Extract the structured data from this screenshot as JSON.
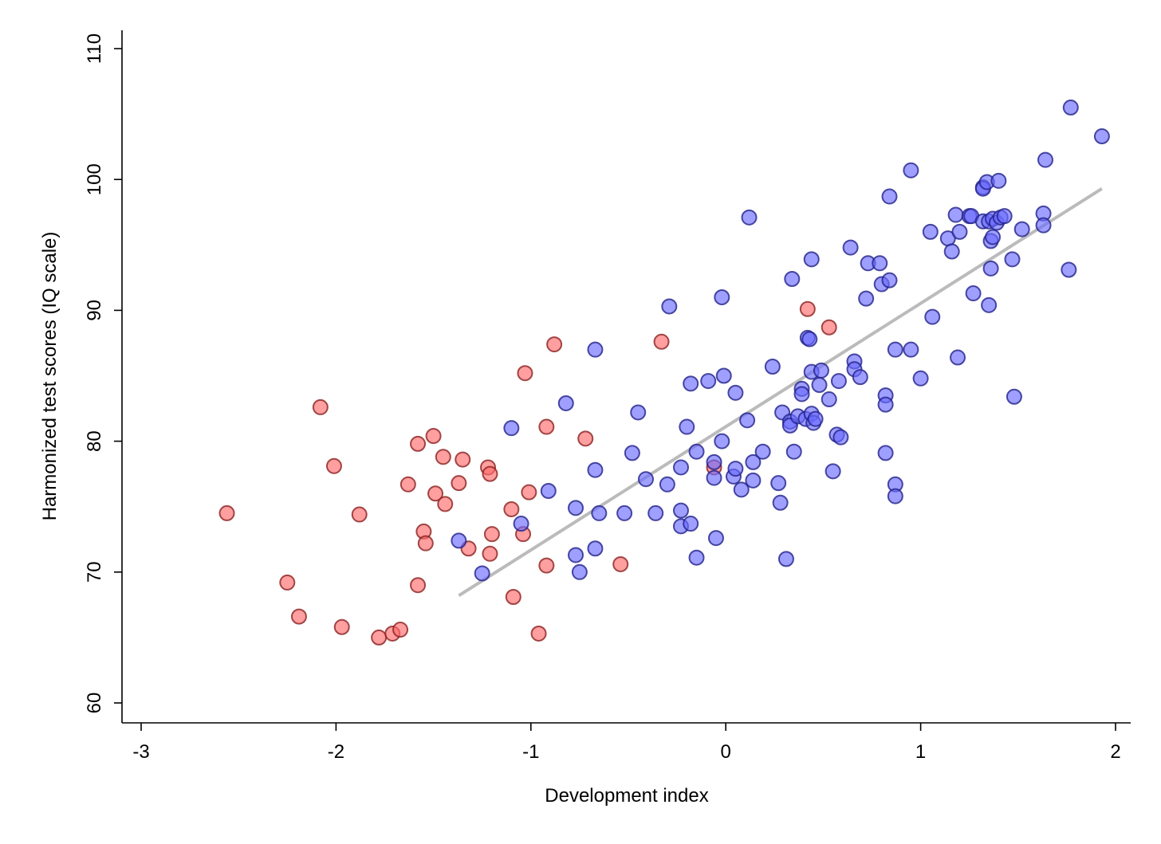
{
  "chart_data": {
    "type": "scatter",
    "title": "",
    "xlabel": "Development index",
    "ylabel": "Harmonized test scores (IQ scale)",
    "xlim": [
      -3,
      2
    ],
    "ylim": [
      60,
      110
    ],
    "xticks": [
      -3,
      -2,
      -1,
      0,
      1,
      2
    ],
    "yticks": [
      60,
      70,
      80,
      90,
      100,
      110
    ],
    "grid": false,
    "legend": "none",
    "colors": {
      "red_fill": "#ff6b6b",
      "red_stroke": "#8b2020",
      "blue_fill": "#6b6bff",
      "blue_stroke": "#22228b",
      "trend": "#bbbbbb"
    },
    "trend_line": {
      "x": [
        -1.37,
        1.93
      ],
      "y": [
        68.2,
        99.3
      ]
    },
    "series": [
      {
        "group": "red",
        "points": [
          [
            -2.56,
            74.5
          ],
          [
            -2.25,
            69.2
          ],
          [
            -2.19,
            66.6
          ],
          [
            -2.08,
            82.6
          ],
          [
            -2.01,
            78.1
          ],
          [
            -1.97,
            65.8
          ],
          [
            -1.88,
            74.4
          ],
          [
            -1.78,
            65.0
          ],
          [
            -1.71,
            65.3
          ],
          [
            -1.67,
            65.6
          ],
          [
            -1.63,
            76.7
          ],
          [
            -1.58,
            79.8
          ],
          [
            -1.58,
            69.0
          ],
          [
            -1.55,
            73.1
          ],
          [
            -1.54,
            72.2
          ],
          [
            -1.5,
            80.4
          ],
          [
            -1.49,
            76.0
          ],
          [
            -1.45,
            78.8
          ],
          [
            -1.44,
            75.2
          ],
          [
            -1.37,
            76.8
          ],
          [
            -1.35,
            78.6
          ],
          [
            -1.32,
            71.8
          ],
          [
            -1.22,
            78.0
          ],
          [
            -1.21,
            77.5
          ],
          [
            -1.21,
            71.4
          ],
          [
            -1.2,
            72.9
          ],
          [
            -1.1,
            74.8
          ],
          [
            -1.09,
            68.1
          ],
          [
            -1.04,
            72.9
          ],
          [
            -1.03,
            85.2
          ],
          [
            -1.01,
            76.1
          ],
          [
            -0.96,
            65.3
          ],
          [
            -0.92,
            81.1
          ],
          [
            -0.92,
            70.5
          ],
          [
            -0.88,
            87.4
          ],
          [
            -0.72,
            80.2
          ],
          [
            -0.54,
            70.6
          ],
          [
            -0.33,
            87.6
          ],
          [
            -0.06,
            78.0
          ],
          [
            0.42,
            90.1
          ],
          [
            0.53,
            88.7
          ]
        ]
      },
      {
        "group": "blue",
        "points": [
          [
            -1.37,
            72.4
          ],
          [
            -1.25,
            69.9
          ],
          [
            -1.1,
            81.0
          ],
          [
            -1.05,
            73.7
          ],
          [
            -0.91,
            76.2
          ],
          [
            -0.82,
            82.9
          ],
          [
            -0.77,
            74.9
          ],
          [
            -0.77,
            71.3
          ],
          [
            -0.75,
            70.0
          ],
          [
            -0.67,
            87.0
          ],
          [
            -0.67,
            77.8
          ],
          [
            -0.67,
            71.8
          ],
          [
            -0.65,
            74.5
          ],
          [
            -0.52,
            74.5
          ],
          [
            -0.48,
            79.1
          ],
          [
            -0.45,
            82.2
          ],
          [
            -0.41,
            77.1
          ],
          [
            -0.36,
            74.5
          ],
          [
            -0.3,
            76.7
          ],
          [
            -0.29,
            90.3
          ],
          [
            -0.23,
            78.0
          ],
          [
            -0.23,
            74.7
          ],
          [
            -0.23,
            73.5
          ],
          [
            -0.2,
            81.1
          ],
          [
            -0.18,
            84.4
          ],
          [
            -0.18,
            73.7
          ],
          [
            -0.15,
            79.2
          ],
          [
            -0.15,
            71.1
          ],
          [
            -0.09,
            84.6
          ],
          [
            -0.06,
            78.4
          ],
          [
            -0.06,
            77.2
          ],
          [
            -0.05,
            72.6
          ],
          [
            -0.02,
            91.0
          ],
          [
            -0.02,
            80.0
          ],
          [
            -0.01,
            85.0
          ],
          [
            0.04,
            77.3
          ],
          [
            0.05,
            83.7
          ],
          [
            0.05,
            77.9
          ],
          [
            0.08,
            76.3
          ],
          [
            0.11,
            81.6
          ],
          [
            0.12,
            97.1
          ],
          [
            0.14,
            78.4
          ],
          [
            0.14,
            77.0
          ],
          [
            0.19,
            79.2
          ],
          [
            0.24,
            85.7
          ],
          [
            0.27,
            76.8
          ],
          [
            0.28,
            75.3
          ],
          [
            0.29,
            82.2
          ],
          [
            0.31,
            71.0
          ],
          [
            0.33,
            81.5
          ],
          [
            0.33,
            81.2
          ],
          [
            0.34,
            92.4
          ],
          [
            0.35,
            79.2
          ],
          [
            0.37,
            81.9
          ],
          [
            0.39,
            84.0
          ],
          [
            0.39,
            83.6
          ],
          [
            0.41,
            81.7
          ],
          [
            0.42,
            87.9
          ],
          [
            0.43,
            87.8
          ],
          [
            0.44,
            93.9
          ],
          [
            0.44,
            85.3
          ],
          [
            0.44,
            82.1
          ],
          [
            0.45,
            81.4
          ],
          [
            0.46,
            81.7
          ],
          [
            0.48,
            84.3
          ],
          [
            0.49,
            85.4
          ],
          [
            0.53,
            83.2
          ],
          [
            0.55,
            77.7
          ],
          [
            0.57,
            80.5
          ],
          [
            0.58,
            84.6
          ],
          [
            0.59,
            80.3
          ],
          [
            0.64,
            94.8
          ],
          [
            0.66,
            86.1
          ],
          [
            0.66,
            85.5
          ],
          [
            0.69,
            84.9
          ],
          [
            0.72,
            90.9
          ],
          [
            0.73,
            93.6
          ],
          [
            0.79,
            93.6
          ],
          [
            0.8,
            92.0
          ],
          [
            0.82,
            83.5
          ],
          [
            0.82,
            82.8
          ],
          [
            0.82,
            79.1
          ],
          [
            0.84,
            98.7
          ],
          [
            0.84,
            92.3
          ],
          [
            0.87,
            87.0
          ],
          [
            0.87,
            76.7
          ],
          [
            0.87,
            75.8
          ],
          [
            0.95,
            100.7
          ],
          [
            0.95,
            87.0
          ],
          [
            1.0,
            84.8
          ],
          [
            1.05,
            96.0
          ],
          [
            1.06,
            89.5
          ],
          [
            1.14,
            95.5
          ],
          [
            1.16,
            94.5
          ],
          [
            1.18,
            97.3
          ],
          [
            1.19,
            86.4
          ],
          [
            1.2,
            96.0
          ],
          [
            1.25,
            97.2
          ],
          [
            1.26,
            97.2
          ],
          [
            1.27,
            91.3
          ],
          [
            1.32,
            99.4
          ],
          [
            1.32,
            99.3
          ],
          [
            1.32,
            96.8
          ],
          [
            1.34,
            99.8
          ],
          [
            1.35,
            96.8
          ],
          [
            1.35,
            90.4
          ],
          [
            1.36,
            95.3
          ],
          [
            1.36,
            93.2
          ],
          [
            1.37,
            97.0
          ],
          [
            1.37,
            95.6
          ],
          [
            1.39,
            96.7
          ],
          [
            1.4,
            99.9
          ],
          [
            1.41,
            97.1
          ],
          [
            1.43,
            97.2
          ],
          [
            1.47,
            93.9
          ],
          [
            1.48,
            83.4
          ],
          [
            1.52,
            96.2
          ],
          [
            1.63,
            97.4
          ],
          [
            1.63,
            96.5
          ],
          [
            1.64,
            101.5
          ],
          [
            1.76,
            93.1
          ],
          [
            1.77,
            105.5
          ],
          [
            1.93,
            103.3
          ]
        ]
      }
    ]
  }
}
